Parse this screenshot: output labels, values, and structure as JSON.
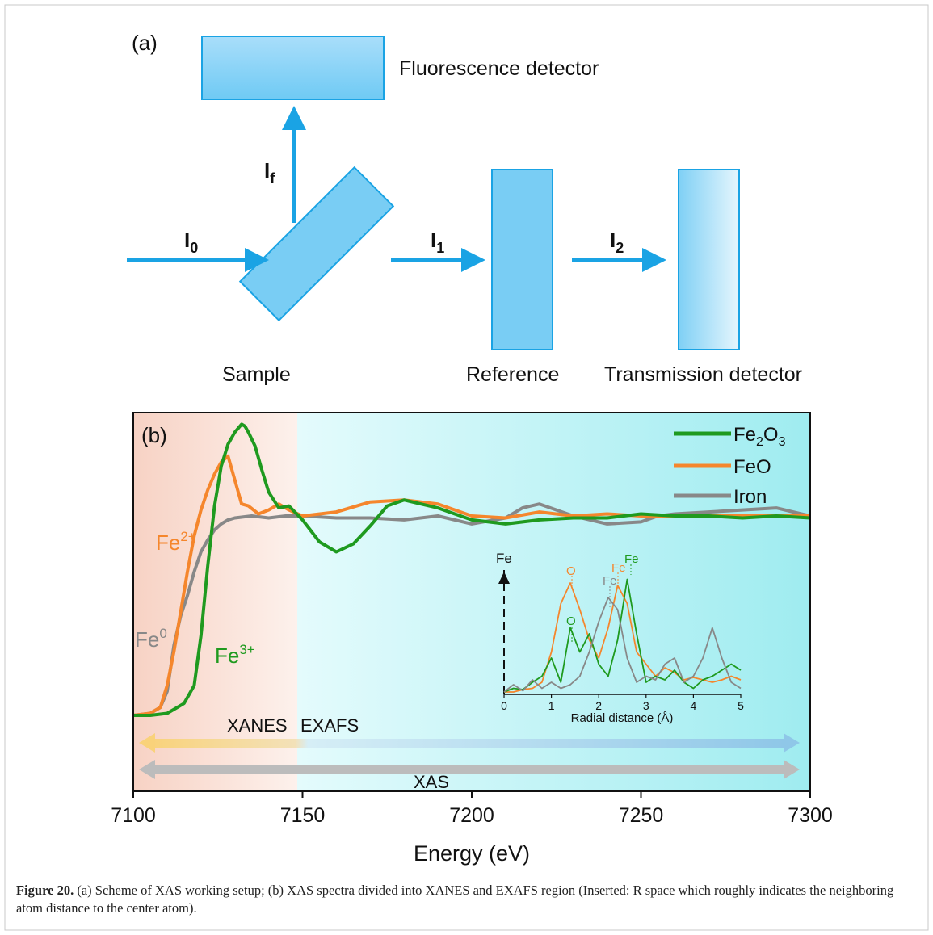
{
  "panel_a": {
    "label": "(a)",
    "fluorescence_detector": "Fluorescence detector",
    "sample": "Sample",
    "reference": "Reference",
    "transmission_detector": "Transmission detector",
    "beams": {
      "i0": {
        "main": "I",
        "sub": "0"
      },
      "i1": {
        "main": "I",
        "sub": "1"
      },
      "i2": {
        "main": "I",
        "sub": "2"
      },
      "if": {
        "main": "I",
        "sub": "f"
      }
    }
  },
  "panel_b": {
    "label": "(b)",
    "annotations": {
      "fe2": {
        "main": "Fe",
        "sup": "2+"
      },
      "fe3": {
        "main": "Fe",
        "sup": "3+"
      },
      "fe0": {
        "main": "Fe",
        "sup": "0"
      },
      "xanes": "XANES",
      "exafs": "EXAFS",
      "xas": "XAS"
    },
    "inset": {
      "y_label": "Fe",
      "x_label": "Radial distance (Å)",
      "peak_labels": {
        "o_feo": "O",
        "o_fe2o3": "O",
        "fe_iron": "Fe",
        "fe_feo": "Fe",
        "fe_fe2o3": "Fe"
      }
    }
  },
  "chart_data": {
    "type": "line",
    "xlabel": "Energy (eV)",
    "xlim": [
      7100,
      7300
    ],
    "x_ticks": [
      "7100",
      "7150",
      "7200",
      "7250",
      "7300"
    ],
    "legend_position": "top-right",
    "series": [
      {
        "name_main": "Fe",
        "name_sub1": "2",
        "name_mid": "O",
        "name_sub2": "3",
        "color": "#1f9a1f",
        "x": [
          7100,
          7105,
          7110,
          7113,
          7115,
          7118,
          7120,
          7122,
          7124,
          7126,
          7128,
          7130,
          7132,
          7133,
          7134,
          7136,
          7138,
          7140,
          7143,
          7146,
          7150,
          7155,
          7160,
          7165,
          7170,
          7175,
          7180,
          7185,
          7190,
          7195,
          7200,
          7210,
          7220,
          7230,
          7240,
          7250,
          7260,
          7270,
          7280,
          7290,
          7300
        ],
        "y": [
          0.0,
          0.0,
          0.01,
          0.04,
          0.06,
          0.15,
          0.4,
          0.75,
          1.05,
          1.25,
          1.36,
          1.42,
          1.46,
          1.45,
          1.42,
          1.35,
          1.23,
          1.12,
          1.04,
          1.05,
          0.98,
          0.87,
          0.82,
          0.86,
          0.95,
          1.05,
          1.08,
          1.06,
          1.04,
          1.01,
          0.98,
          0.96,
          0.98,
          0.99,
          0.99,
          1.01,
          1.0,
          1.0,
          0.99,
          1.0,
          0.99
        ]
      },
      {
        "name": "FeO",
        "color": "#f5862c",
        "x": [
          7100,
          7105,
          7108,
          7110,
          7112,
          7114,
          7116,
          7118,
          7120,
          7122,
          7124,
          7126,
          7128,
          7130,
          7132,
          7134,
          7137,
          7140,
          7143,
          7146,
          7150,
          7160,
          7170,
          7180,
          7190,
          7200,
          7210,
          7220,
          7230,
          7240,
          7250,
          7260,
          7270,
          7280,
          7290,
          7300
        ],
        "y": [
          0.0,
          0.01,
          0.04,
          0.15,
          0.32,
          0.52,
          0.72,
          0.9,
          1.03,
          1.13,
          1.21,
          1.27,
          1.3,
          1.18,
          1.06,
          1.05,
          1.01,
          1.03,
          1.06,
          1.03,
          1.0,
          1.02,
          1.07,
          1.08,
          1.06,
          1.0,
          0.99,
          1.02,
          1.0,
          1.01,
          1.0,
          1.0,
          1.0,
          1.0,
          1.0,
          1.0
        ]
      },
      {
        "name": "Iron",
        "color": "#888888",
        "x": [
          7100,
          7105,
          7108,
          7110,
          7112,
          7114,
          7116,
          7118,
          7120,
          7122,
          7124,
          7126,
          7128,
          7130,
          7135,
          7140,
          7145,
          7150,
          7160,
          7170,
          7180,
          7190,
          7200,
          7210,
          7215,
          7220,
          7225,
          7230,
          7240,
          7250,
          7255,
          7260,
          7270,
          7280,
          7290,
          7295,
          7300
        ],
        "y": [
          0.0,
          0.01,
          0.04,
          0.12,
          0.35,
          0.5,
          0.6,
          0.72,
          0.82,
          0.88,
          0.93,
          0.96,
          0.98,
          0.99,
          1.0,
          0.99,
          1.0,
          1.0,
          0.99,
          0.99,
          0.98,
          1.0,
          0.96,
          0.99,
          1.04,
          1.06,
          1.03,
          1.0,
          0.96,
          0.97,
          1.0,
          1.01,
          1.02,
          1.03,
          1.04,
          1.02,
          1.0
        ]
      }
    ],
    "regions": [
      {
        "label": "XANES",
        "from": 7100,
        "to": 7150
      },
      {
        "label": "EXAFS",
        "from": 7150,
        "to": 7300
      }
    ],
    "inset": {
      "type": "line",
      "xlabel": "Radial distance (Å)",
      "ylabel": "Fe",
      "xlim": [
        0,
        5
      ],
      "x_ticks": [
        "0",
        "1",
        "2",
        "3",
        "4",
        "5"
      ],
      "series": [
        {
          "ref": "FeO",
          "color": "#f5862c",
          "x": [
            0,
            0.2,
            0.4,
            0.6,
            0.8,
            1.0,
            1.2,
            1.4,
            1.6,
            1.8,
            2.0,
            2.2,
            2.4,
            2.6,
            2.8,
            3.0,
            3.2,
            3.4,
            3.6,
            3.8,
            4.0,
            4.2,
            4.4,
            4.6,
            4.8,
            5.0
          ],
          "y": [
            0.02,
            0.02,
            0.04,
            0.05,
            0.1,
            0.35,
            0.75,
            0.92,
            0.7,
            0.45,
            0.3,
            0.55,
            0.9,
            0.75,
            0.35,
            0.25,
            0.15,
            0.22,
            0.18,
            0.12,
            0.14,
            0.12,
            0.1,
            0.12,
            0.15,
            0.12
          ]
        },
        {
          "ref": "Fe2O3",
          "color": "#1f9a1f",
          "x": [
            0,
            0.2,
            0.4,
            0.6,
            0.8,
            1.0,
            1.2,
            1.4,
            1.6,
            1.8,
            2.0,
            2.2,
            2.4,
            2.6,
            2.8,
            3.0,
            3.2,
            3.4,
            3.6,
            3.8,
            4.0,
            4.2,
            4.4,
            4.6,
            4.8,
            5.0
          ],
          "y": [
            0.02,
            0.05,
            0.04,
            0.1,
            0.15,
            0.3,
            0.1,
            0.55,
            0.35,
            0.5,
            0.25,
            0.15,
            0.45,
            0.95,
            0.5,
            0.1,
            0.15,
            0.12,
            0.2,
            0.1,
            0.05,
            0.12,
            0.15,
            0.2,
            0.25,
            0.2
          ]
        },
        {
          "ref": "Iron",
          "color": "#888888",
          "x": [
            0,
            0.2,
            0.4,
            0.6,
            0.8,
            1.0,
            1.2,
            1.4,
            1.6,
            1.8,
            2.0,
            2.2,
            2.4,
            2.6,
            2.8,
            3.0,
            3.2,
            3.4,
            3.6,
            3.8,
            4.0,
            4.2,
            4.4,
            4.6,
            4.8,
            5.0
          ],
          "y": [
            0.02,
            0.08,
            0.03,
            0.12,
            0.05,
            0.1,
            0.05,
            0.08,
            0.15,
            0.35,
            0.6,
            0.8,
            0.7,
            0.3,
            0.1,
            0.15,
            0.12,
            0.25,
            0.3,
            0.1,
            0.15,
            0.3,
            0.55,
            0.3,
            0.1,
            0.05
          ]
        }
      ]
    }
  },
  "caption": {
    "label": "Figure 20.",
    "text": " (a) Scheme of XAS working setup; (b) XAS spectra divided into XANES and EXAFS region (Inserted: R space which roughly indicates the neighboring atom distance to the center atom)."
  }
}
